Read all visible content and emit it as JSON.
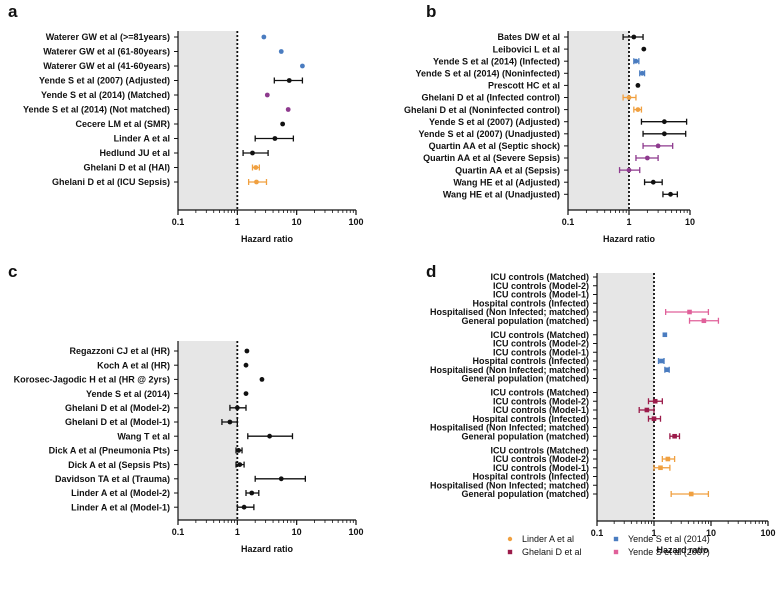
{
  "figure": {
    "x_axis_label": "Hazard ratio",
    "reference_value": 1
  },
  "chart_data": [
    {
      "panel": "a",
      "type": "forest",
      "xscale": "log",
      "xlim": [
        0.1,
        100
      ],
      "xticks": [
        {
          "v": 0.1,
          "label": "0.1"
        },
        {
          "v": 1,
          "label": "1"
        },
        {
          "v": 10,
          "label": "10"
        },
        {
          "v": 100,
          "label": "100"
        }
      ],
      "xlabel": "Hazard ratio",
      "shaded_region": [
        0.1,
        1
      ],
      "rows": [
        {
          "label": "Waterer GW et al (>=81years)",
          "hr": 2.8,
          "lo": null,
          "hi": null,
          "color": "#4a7cc0"
        },
        {
          "label": "Waterer GW et al (61-80years)",
          "hr": 5.5,
          "lo": null,
          "hi": null,
          "color": "#4a7cc0"
        },
        {
          "label": "Waterer GW et al (41-60years)",
          "hr": 12.5,
          "lo": null,
          "hi": null,
          "color": "#4a7cc0"
        },
        {
          "label": "Yende S et al (2007) (Adjusted)",
          "hr": 7.5,
          "lo": 4.2,
          "hi": 12.5,
          "color": "#111111"
        },
        {
          "label": "Yende S et al (2014) (Matched)",
          "hr": 3.2,
          "lo": null,
          "hi": null,
          "color": "#8e3a8e"
        },
        {
          "label": "Yende S et al (2014) (Not matched)",
          "hr": 7.2,
          "lo": null,
          "hi": null,
          "color": "#8e3a8e"
        },
        {
          "label": "Cecere LM et al (SMR)",
          "hr": 5.8,
          "lo": null,
          "hi": null,
          "color": "#111111"
        },
        {
          "label": "Linder A et al",
          "hr": 4.3,
          "lo": 2.0,
          "hi": 8.8,
          "color": "#111111"
        },
        {
          "label": "Hedlund JU et al",
          "hr": 1.8,
          "lo": 1.25,
          "hi": 3.3,
          "color": "#111111"
        },
        {
          "label": "Ghelani D et al (HAI)",
          "hr": 2.05,
          "lo": 1.8,
          "hi": 2.35,
          "color": "#f0a040"
        },
        {
          "label": "Ghelani D et al (ICU Sepsis)",
          "hr": 2.1,
          "lo": 1.55,
          "hi": 3.1,
          "color": "#f0a040"
        }
      ]
    },
    {
      "panel": "b",
      "type": "forest",
      "xscale": "log",
      "xlim": [
        0.1,
        10
      ],
      "xticks": [
        {
          "v": 0.1,
          "label": "0.1"
        },
        {
          "v": 1,
          "label": "1"
        },
        {
          "v": 10,
          "label": "10"
        }
      ],
      "xlabel": "Hazard ratio",
      "shaded_region": [
        0.1,
        1
      ],
      "rows": [
        {
          "label": "Bates DW et al",
          "hr": 1.2,
          "lo": 0.8,
          "hi": 1.7,
          "color": "#111111"
        },
        {
          "label": "Leibovici L et al",
          "hr": 1.75,
          "lo": null,
          "hi": null,
          "color": "#111111"
        },
        {
          "label": "Yende S et al (2014) (Infected)",
          "hr": 1.3,
          "lo": 1.2,
          "hi": 1.45,
          "color": "#4a7cc0"
        },
        {
          "label": "Yende S et al (2014) (Noninfected)",
          "hr": 1.65,
          "lo": 1.5,
          "hi": 1.8,
          "color": "#4a7cc0"
        },
        {
          "label": "Prescott HC et al",
          "hr": 1.4,
          "lo": null,
          "hi": null,
          "color": "#111111"
        },
        {
          "label": "Ghelani D et al (Infected control)",
          "hr": 1.0,
          "lo": 0.8,
          "hi": 1.3,
          "color": "#f0a040"
        },
        {
          "label": "Ghelani D et al (Noninfected control)",
          "hr": 1.4,
          "lo": 1.2,
          "hi": 1.6,
          "color": "#f0a040"
        },
        {
          "label": "Yende S et al (2007) (Adjusted)",
          "hr": 3.8,
          "lo": 1.6,
          "hi": 8.8,
          "color": "#111111"
        },
        {
          "label": "Yende S et al (2007) (Unadjusted)",
          "hr": 3.8,
          "lo": 1.7,
          "hi": 8.5,
          "color": "#111111"
        },
        {
          "label": "Quartin AA et al (Septic shock)",
          "hr": 3.0,
          "lo": 1.7,
          "hi": 5.2,
          "color": "#8e3a8e"
        },
        {
          "label": "Quartin AA et al (Severe Sepsis)",
          "hr": 2.0,
          "lo": 1.3,
          "hi": 3.0,
          "color": "#8e3a8e"
        },
        {
          "label": "Quartin AA et al (Sepsis)",
          "hr": 1.0,
          "lo": 0.7,
          "hi": 1.5,
          "color": "#8e3a8e"
        },
        {
          "label": "Wang HE et al (Adjusted)",
          "hr": 2.5,
          "lo": 1.8,
          "hi": 3.5,
          "color": "#111111"
        },
        {
          "label": "Wang HE et al (Unadjusted)",
          "hr": 4.8,
          "lo": 3.6,
          "hi": 6.2,
          "color": "#111111"
        }
      ]
    },
    {
      "panel": "c",
      "type": "forest",
      "xscale": "log",
      "xlim": [
        0.1,
        100
      ],
      "xticks": [
        {
          "v": 0.1,
          "label": "0.1"
        },
        {
          "v": 1,
          "label": "1"
        },
        {
          "v": 10,
          "label": "10"
        },
        {
          "v": 100,
          "label": "100"
        }
      ],
      "xlabel": "Hazard ratio",
      "shaded_region": [
        0.1,
        1
      ],
      "rows": [
        {
          "label": "Regazzoni CJ et al (HR)",
          "hr": 1.45,
          "lo": null,
          "hi": null,
          "color": "#111111"
        },
        {
          "label": "Koch A et al (HR)",
          "hr": 1.4,
          "lo": null,
          "hi": null,
          "color": "#111111"
        },
        {
          "label": "Korosec-Jagodic H et al (HR @ 2yrs)",
          "hr": 2.6,
          "lo": null,
          "hi": null,
          "color": "#111111"
        },
        {
          "label": "Yende S et al (2014)",
          "hr": 1.4,
          "lo": null,
          "hi": null,
          "color": "#111111"
        },
        {
          "label": "Ghelani D et al (Model-2)",
          "hr": 1.0,
          "lo": 0.75,
          "hi": 1.4,
          "color": "#111111"
        },
        {
          "label": "Ghelani D et al (Model-1)",
          "hr": 0.75,
          "lo": 0.55,
          "hi": 1.0,
          "color": "#111111"
        },
        {
          "label": "Wang T et al",
          "hr": 3.5,
          "lo": 1.5,
          "hi": 8.5,
          "color": "#111111"
        },
        {
          "label": "Dick A et al (Pneumonia Pts)",
          "hr": 1.05,
          "lo": 0.95,
          "hi": 1.2,
          "color": "#111111"
        },
        {
          "label": "Dick A et al (Sepsis Pts)",
          "hr": 1.1,
          "lo": 0.95,
          "hi": 1.3,
          "color": "#111111"
        },
        {
          "label": "Davidson TA et al (Trauma)",
          "hr": 5.5,
          "lo": 2.0,
          "hi": 14,
          "color": "#111111"
        },
        {
          "label": "Linder A et al (Model-2)",
          "hr": 1.75,
          "lo": 1.4,
          "hi": 2.3,
          "color": "#111111"
        },
        {
          "label": "Linder A et al (Model-1)",
          "hr": 1.3,
          "lo": 1.0,
          "hi": 1.9,
          "color": "#111111"
        }
      ]
    },
    {
      "panel": "d",
      "type": "forest",
      "xscale": "log",
      "xlim": [
        0.1,
        100
      ],
      "xticks": [
        {
          "v": 0.1,
          "label": "0.1"
        },
        {
          "v": 1,
          "label": "1"
        },
        {
          "v": 10,
          "label": "10"
        },
        {
          "v": 100,
          "label": "100"
        }
      ],
      "xlabel": "Hazard ratio",
      "shaded_region": [
        0.1,
        1
      ],
      "legend": [
        {
          "name": "Linder A et al",
          "color": "#f0a040",
          "marker": "circle"
        },
        {
          "name": "Yende S et al (2014)",
          "color": "#4a7cc0",
          "marker": "square"
        },
        {
          "name": "Ghelani D et al",
          "color": "#9b1b4a",
          "marker": "square"
        },
        {
          "name": "Yende S et al (2007)",
          "color": "#e0609a",
          "marker": "square"
        }
      ],
      "rows": [
        {
          "label": "ICU controls (Matched)",
          "hr": null,
          "lo": null,
          "hi": null,
          "color": ""
        },
        {
          "label": "ICU controls (Model-2)",
          "hr": null,
          "lo": null,
          "hi": null,
          "color": ""
        },
        {
          "label": "ICU controls (Model-1)",
          "hr": null,
          "lo": null,
          "hi": null,
          "color": ""
        },
        {
          "label": "Hospital controls (Infected)",
          "hr": null,
          "lo": null,
          "hi": null,
          "color": ""
        },
        {
          "label": "Hospitalised (Non Infected; matched)",
          "hr": 4.2,
          "lo": 1.6,
          "hi": 9.0,
          "color": "#e0609a"
        },
        {
          "label": "General population (matched)",
          "hr": 7.5,
          "lo": 4.2,
          "hi": 13.5,
          "color": "#e0609a"
        },
        {
          "gap": true
        },
        {
          "label": "ICU controls (Matched)",
          "hr": 1.55,
          "lo": null,
          "hi": null,
          "color": "#4a7cc0"
        },
        {
          "label": "ICU controls (Model-2)",
          "hr": null,
          "lo": null,
          "hi": null,
          "color": ""
        },
        {
          "label": "ICU controls (Model-1)",
          "hr": null,
          "lo": null,
          "hi": null,
          "color": ""
        },
        {
          "label": "Hospital controls (Infected)",
          "hr": 1.35,
          "lo": 1.2,
          "hi": 1.5,
          "color": "#4a7cc0"
        },
        {
          "label": "Hospitalised (Non Infected; matched)",
          "hr": 1.7,
          "lo": 1.55,
          "hi": 1.85,
          "color": "#4a7cc0"
        },
        {
          "label": "General population (matched)",
          "hr": null,
          "lo": null,
          "hi": null,
          "color": ""
        },
        {
          "gap": true
        },
        {
          "label": "ICU controls (Matched)",
          "hr": null,
          "lo": null,
          "hi": null,
          "color": ""
        },
        {
          "label": "ICU controls (Model-2)",
          "hr": 1.05,
          "lo": 0.8,
          "hi": 1.4,
          "color": "#9b1b4a"
        },
        {
          "label": "ICU controls (Model-1)",
          "hr": 0.75,
          "lo": 0.55,
          "hi": 1.0,
          "color": "#9b1b4a"
        },
        {
          "label": "Hospital controls (Infected)",
          "hr": 1.0,
          "lo": 0.8,
          "hi": 1.3,
          "color": "#9b1b4a"
        },
        {
          "label": "Hospitalised (Non Infected; matched)",
          "hr": null,
          "lo": null,
          "hi": null,
          "color": ""
        },
        {
          "label": "General population (matched)",
          "hr": 2.3,
          "lo": 1.9,
          "hi": 2.8,
          "color": "#9b1b4a"
        },
        {
          "gap": true
        },
        {
          "label": "ICU controls (Matched)",
          "hr": null,
          "lo": null,
          "hi": null,
          "color": ""
        },
        {
          "label": "ICU controls (Model-2)",
          "hr": 1.75,
          "lo": 1.4,
          "hi": 2.3,
          "color": "#f0a040"
        },
        {
          "label": "ICU controls (Model-1)",
          "hr": 1.3,
          "lo": 1.0,
          "hi": 1.9,
          "color": "#f0a040"
        },
        {
          "label": "Hospital controls (Infected)",
          "hr": null,
          "lo": null,
          "hi": null,
          "color": ""
        },
        {
          "label": "Hospitalised (Non Infected; matched)",
          "hr": null,
          "lo": null,
          "hi": null,
          "color": ""
        },
        {
          "label": "General population (matched)",
          "hr": 4.5,
          "lo": 2.0,
          "hi": 9.0,
          "color": "#f0a040"
        }
      ]
    }
  ]
}
